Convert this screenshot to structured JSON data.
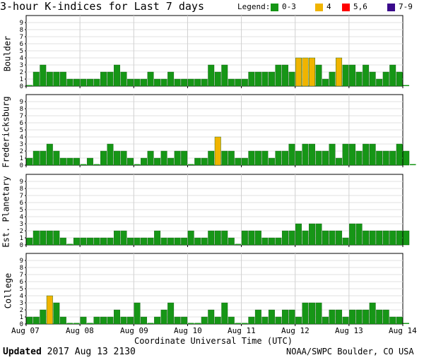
{
  "title": "3-hour K-indices for Last 7 days",
  "legend": {
    "label": "Legend:",
    "items": [
      {
        "label": "0-3",
        "color": "#169616"
      },
      {
        "label": "4",
        "color": "#f0b400"
      },
      {
        "label": "5,6",
        "color": "#ff0000"
      },
      {
        "label": "7-9",
        "color": "#3a0a8c"
      }
    ]
  },
  "footer": {
    "updated_label": "Updated",
    "updated_time": "2017 Aug 13 2130",
    "source": "NOAA/SWPC Boulder, CO USA"
  },
  "chart_data": [
    {
      "type": "bar",
      "ylabel": "Boulder",
      "ylim": [
        0,
        9
      ],
      "yticks": [
        "0",
        "1",
        "2",
        "3",
        "4",
        "5",
        "6",
        "7",
        "8",
        "9"
      ],
      "xticks": [
        "Aug 07",
        "Aug 08",
        "Aug 09",
        "Aug 10",
        "Aug 11",
        "Aug 12",
        "Aug 13",
        "Aug 14"
      ],
      "xlabel": "Coordinate Universal Time (UTC)",
      "values": [
        0,
        2,
        3,
        2,
        2,
        2,
        1,
        1,
        1,
        1,
        1,
        2,
        2,
        3,
        2,
        1,
        1,
        1,
        2,
        1,
        1,
        2,
        1,
        1,
        1,
        1,
        1,
        3,
        2,
        3,
        1,
        1,
        1,
        2,
        2,
        2,
        2,
        3,
        3,
        2,
        4,
        4,
        4,
        3,
        1,
        2,
        4,
        3,
        3,
        2,
        3,
        2,
        1,
        2,
        3,
        2,
        0
      ]
    },
    {
      "type": "bar",
      "ylabel": "Fredericksburg",
      "ylim": [
        0,
        9
      ],
      "yticks": [
        "0",
        "1",
        "2",
        "3",
        "4",
        "5",
        "6",
        "7",
        "8",
        "9"
      ],
      "values": [
        1,
        2,
        2,
        3,
        2,
        1,
        1,
        1,
        0,
        1,
        0,
        2,
        3,
        2,
        2,
        1,
        0,
        1,
        2,
        1,
        2,
        1,
        2,
        2,
        0,
        1,
        1,
        2,
        4,
        2,
        2,
        1,
        1,
        2,
        2,
        2,
        1,
        2,
        2,
        3,
        2,
        3,
        3,
        2,
        2,
        3,
        1,
        3,
        3,
        2,
        3,
        3,
        2,
        2,
        2,
        3,
        2,
        0
      ]
    },
    {
      "type": "bar",
      "ylabel": "Est. Planetary",
      "ylim": [
        0,
        9
      ],
      "yticks": [
        "0",
        "1",
        "2",
        "3",
        "4",
        "5",
        "6",
        "7",
        "8",
        "9"
      ],
      "values": [
        1,
        2,
        2,
        2,
        2,
        1,
        0,
        1,
        1,
        1,
        1,
        1,
        1,
        2,
        2,
        1,
        1,
        1,
        1,
        2,
        1,
        1,
        1,
        1,
        2,
        1,
        1,
        2,
        2,
        2,
        1,
        0,
        2,
        2,
        2,
        1,
        1,
        1,
        2,
        2,
        3,
        2,
        3,
        3,
        2,
        2,
        2,
        1,
        3,
        3,
        2,
        2,
        2,
        2,
        2,
        2,
        2
      ]
    },
    {
      "type": "bar",
      "ylabel": "College",
      "ylim": [
        0,
        9
      ],
      "yticks": [
        "0",
        "1",
        "2",
        "3",
        "4",
        "5",
        "6",
        "7",
        "8",
        "9"
      ],
      "values": [
        1,
        1,
        2,
        4,
        3,
        1,
        0,
        0,
        1,
        0,
        1,
        1,
        1,
        2,
        1,
        1,
        3,
        1,
        0,
        1,
        2,
        3,
        1,
        1,
        0,
        0,
        1,
        2,
        1,
        3,
        1,
        0,
        0,
        1,
        2,
        1,
        2,
        1,
        2,
        2,
        1,
        3,
        3,
        3,
        1,
        2,
        2,
        1,
        2,
        2,
        2,
        3,
        2,
        2,
        1,
        1,
        0
      ]
    }
  ]
}
